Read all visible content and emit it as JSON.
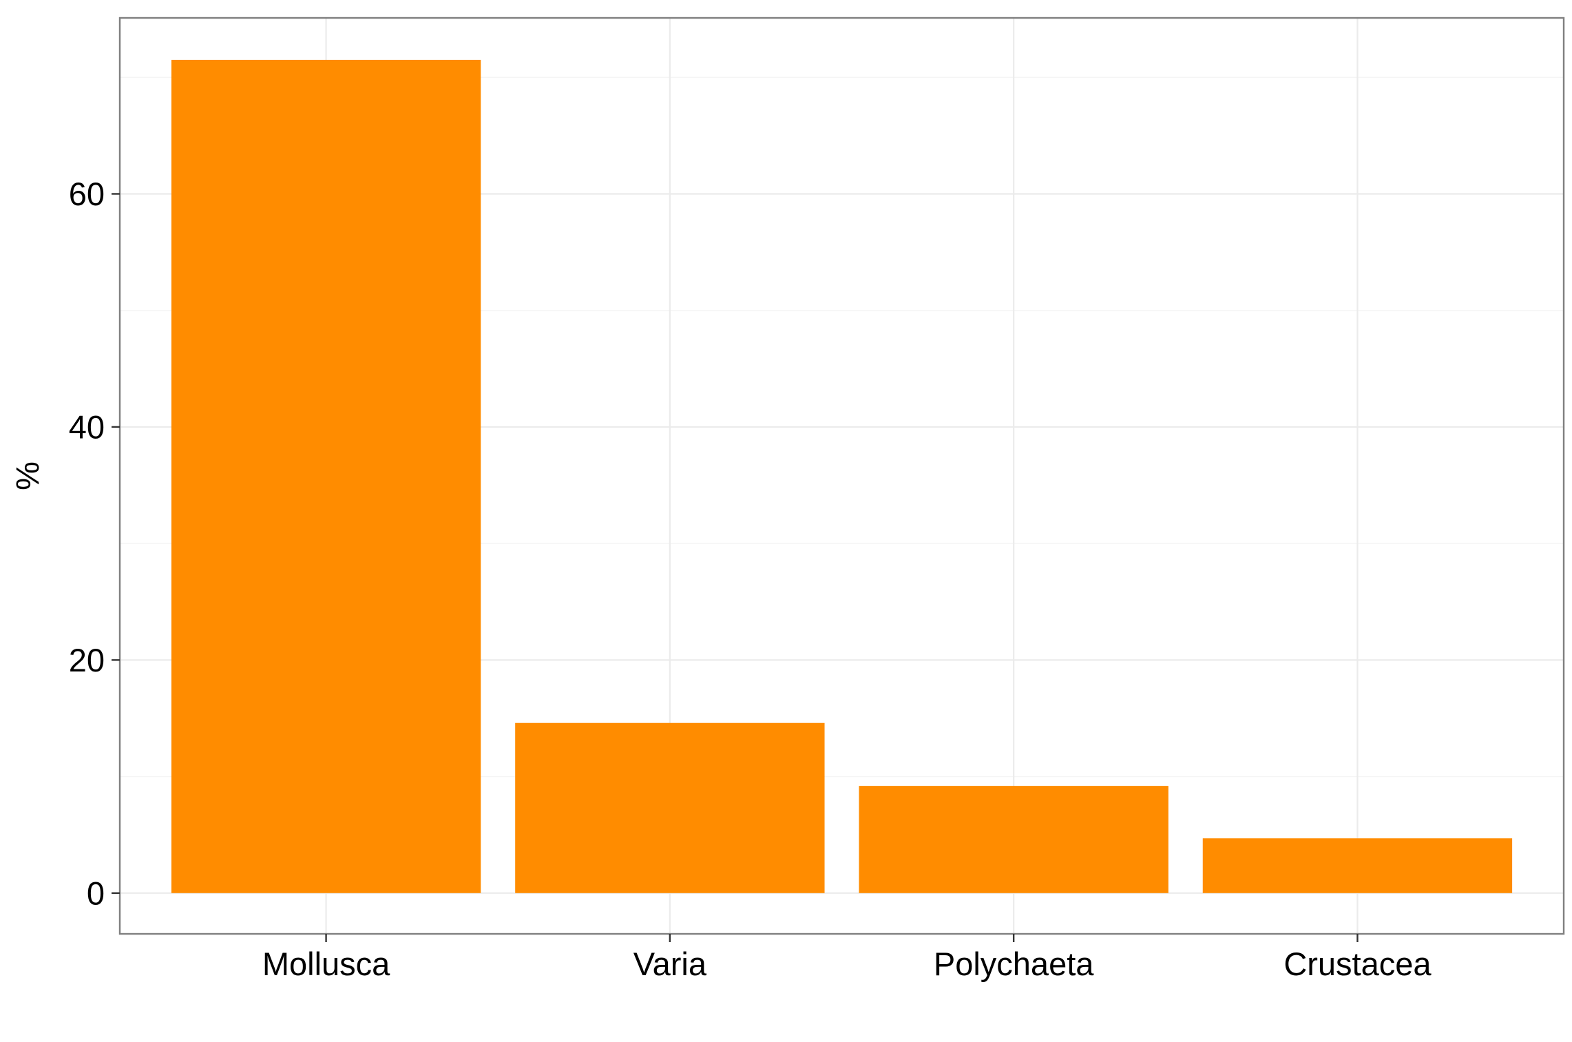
{
  "chart_data": {
    "type": "bar",
    "title": "",
    "xlabel": "",
    "ylabel": "%",
    "categories": [
      "Mollusca",
      "Varia",
      "Polychaeta",
      "Crustacea"
    ],
    "values": [
      71.5,
      14.6,
      9.2,
      4.7
    ],
    "ylim": [
      -3.5,
      75.1
    ],
    "yticks": [
      0,
      20,
      40,
      60
    ],
    "ytick_labels": [
      "0",
      "20",
      "40",
      "60"
    ],
    "minor_grid": [
      10,
      30,
      50,
      70
    ],
    "grid": true,
    "legend": "none",
    "bar_color": "#FF8C00",
    "grid_color": "#EBEBEB",
    "panel_border_color": "#7F7F7F"
  }
}
